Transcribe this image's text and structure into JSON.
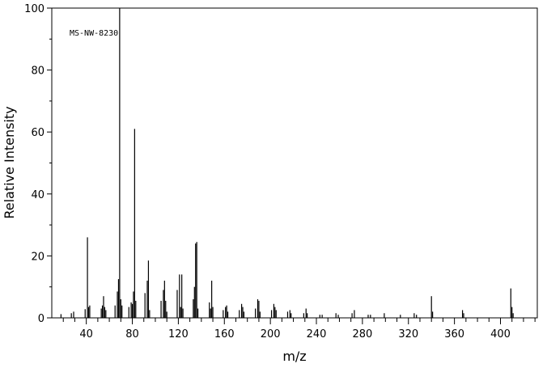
{
  "chart_data": {
    "type": "bar",
    "title": "",
    "annotation": "MS-NW-8230",
    "xlabel": "m/z",
    "ylabel": "Relative Intensity",
    "xlim": [
      10,
      432
    ],
    "ylim": [
      0,
      100
    ],
    "x_ticks": [
      40,
      80,
      120,
      160,
      200,
      240,
      280,
      320,
      360,
      400
    ],
    "y_ticks": [
      0,
      20,
      40,
      60,
      80,
      100
    ],
    "grid": false,
    "x": [
      18,
      27,
      29,
      39,
      41,
      42,
      43,
      53,
      54,
      55,
      56,
      57,
      65,
      67,
      68,
      69,
      70,
      71,
      77,
      79,
      80,
      81,
      82,
      83,
      91,
      93,
      94,
      95,
      105,
      107,
      108,
      109,
      110,
      119,
      121,
      122,
      123,
      124,
      133,
      134,
      135,
      136,
      137,
      147,
      148,
      149,
      150,
      159,
      161,
      162,
      163,
      173,
      175,
      176,
      177,
      187,
      189,
      190,
      191,
      201,
      203,
      204,
      205,
      215,
      217,
      218,
      229,
      231,
      232,
      243,
      245,
      257,
      259,
      271,
      273,
      285,
      287,
      299,
      313,
      325,
      327,
      340,
      341,
      367,
      368,
      409,
      410,
      411
    ],
    "y": [
      1.2,
      1.5,
      2.0,
      2.8,
      26.0,
      3.5,
      4.0,
      3.0,
      4.0,
      7.0,
      3.5,
      2.5,
      4.0,
      8.5,
      12.5,
      100.0,
      6.0,
      4.0,
      3.5,
      5.0,
      4.5,
      8.5,
      61.0,
      5.5,
      8.0,
      12.0,
      18.5,
      2.5,
      5.5,
      9.0,
      12.0,
      5.5,
      2.0,
      9.0,
      14.0,
      3.5,
      14.0,
      3.0,
      6.0,
      10.0,
      24.0,
      24.5,
      3.0,
      5.0,
      3.0,
      12.0,
      3.5,
      2.5,
      3.5,
      4.0,
      2.0,
      2.5,
      4.5,
      3.5,
      2.0,
      3.0,
      6.0,
      5.5,
      2.0,
      2.5,
      4.5,
      3.5,
      2.5,
      2.0,
      2.5,
      1.5,
      1.5,
      3.0,
      1.5,
      1.0,
      1.0,
      1.5,
      1.0,
      1.5,
      2.5,
      1.0,
      1.0,
      1.5,
      1.0,
      1.5,
      1.0,
      7.0,
      2.0,
      2.5,
      1.5,
      9.5,
      3.5,
      1.5
    ]
  }
}
